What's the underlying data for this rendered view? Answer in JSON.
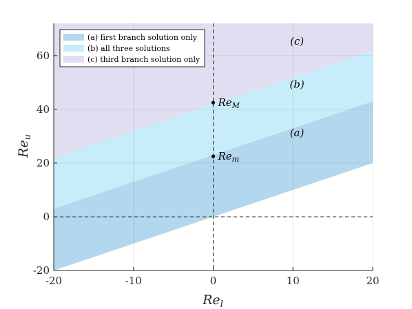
{
  "chart_data": {
    "type": "area",
    "title": "",
    "xlabel": {
      "base": "Re",
      "sub": "l"
    },
    "ylabel": {
      "base": "Re",
      "sub": "u"
    },
    "xlim": [
      -20,
      20
    ],
    "ylim": [
      -20,
      72
    ],
    "xticks": [
      -20,
      -10,
      0,
      10,
      20
    ],
    "yticks": [
      -20,
      0,
      20,
      40,
      60
    ],
    "xtick_labels": [
      "-20",
      "-10",
      "0",
      "10",
      "20"
    ],
    "ytick_labels": [
      "-20",
      "0",
      "20",
      "40",
      "60"
    ],
    "grid": true,
    "legend_position": "top-left",
    "regions": [
      {
        "id": "a",
        "legend": "(a) first branch solution only",
        "tag": "(a)",
        "color": "#b3d7ec",
        "tag_at": [
          10.5,
          30
        ],
        "polygon": [
          [
            -20,
            -20
          ],
          [
            20,
            20
          ],
          [
            20,
            43
          ],
          [
            -20,
            3
          ]
        ]
      },
      {
        "id": "b",
        "legend": "(b) all three solutions",
        "tag": "(b)",
        "color": "#c8ecf9",
        "tag_at": [
          10.5,
          48
        ],
        "polygon": [
          [
            -20,
            3
          ],
          [
            20,
            43
          ],
          [
            20,
            62
          ],
          [
            -20,
            22
          ]
        ]
      },
      {
        "id": "c",
        "legend": "(c) third branch solution only",
        "tag": "(c)",
        "color": "#e0def0",
        "tag_at": [
          10.5,
          64
        ],
        "polygon": [
          [
            -20,
            22
          ],
          [
            20,
            62
          ],
          [
            20,
            72
          ],
          [
            -20,
            72
          ]
        ]
      }
    ],
    "points": [
      {
        "name": "Re_M",
        "base": "Re",
        "sub": "M",
        "x": 0,
        "y": 42.5
      },
      {
        "name": "Re_m",
        "base": "Re",
        "sub": "m",
        "x": 0,
        "y": 22.5
      }
    ],
    "reference_lines": [
      {
        "orientation": "vertical",
        "value": 0,
        "style": "dashed"
      },
      {
        "orientation": "horizontal",
        "value": 0,
        "style": "dashed"
      }
    ]
  }
}
